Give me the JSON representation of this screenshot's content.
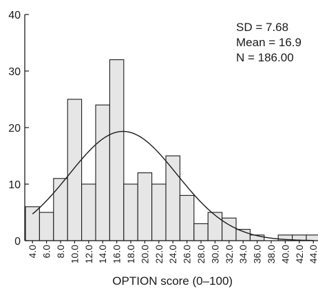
{
  "chart_data": {
    "type": "bar",
    "subtype": "histogram",
    "categories": [
      "4.0",
      "6.0",
      "8.0",
      "10.0",
      "12.0",
      "14.0",
      "16.0",
      "18.0",
      "20.0",
      "22.0",
      "24.0",
      "26.0",
      "28.0",
      "30.0",
      "32.0",
      "34.0",
      "36.0",
      "38.0",
      "40.0",
      "42.0",
      "44.0"
    ],
    "values": [
      6,
      5,
      11,
      25,
      10,
      24,
      32,
      10,
      12,
      10,
      15,
      8,
      3,
      5,
      4,
      2,
      1,
      0,
      1,
      1,
      1
    ],
    "xlabel": "OPTION score (0–100)",
    "ylabel": "",
    "ylim": [
      0,
      40
    ],
    "yticks": [
      "0",
      "10",
      "20",
      "30",
      "40"
    ],
    "normal_curve": {
      "mean": 16.9,
      "sd": 7.68,
      "n": 186,
      "bin_width": 2
    },
    "annotations": [
      "SD = 7.68",
      "Mean = 16.9",
      "N = 186.00"
    ],
    "grid": false,
    "legend": "none"
  }
}
